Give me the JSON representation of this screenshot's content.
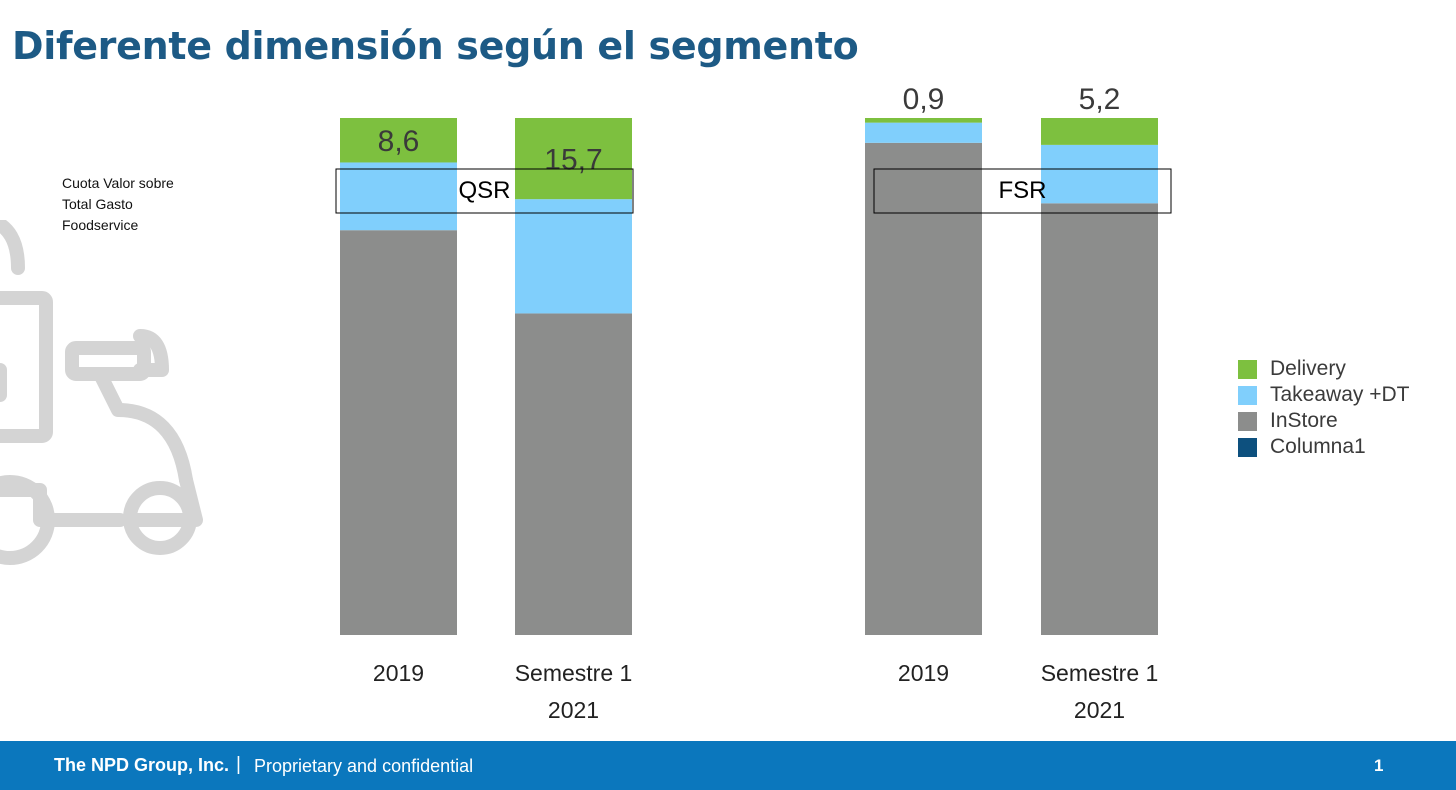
{
  "slide": {
    "title": "Diferente dimensión según el segmento",
    "side_note": [
      "Cuota Valor sobre",
      "Total Gasto",
      "Foodservice"
    ]
  },
  "footer": {
    "company": "The NPD Group, Inc.",
    "separator": "|",
    "confidential": "Proprietary and confidential",
    "page": "1"
  },
  "colors": {
    "title": "#1d5a85",
    "footer_bg": "#0b77bd"
  },
  "icons": {
    "background": "delivery-scooter-icon"
  },
  "chart_data": {
    "type": "bar",
    "stacked": true,
    "unit": "% value share",
    "ylim": [
      0,
      100
    ],
    "grid": false,
    "legend_position": "right",
    "categories": [
      "2019",
      "Semestre 1 2021"
    ],
    "category_lines": [
      [
        "2019"
      ],
      [
        "Semestre 1",
        "2021"
      ]
    ],
    "series": [
      {
        "name": "Delivery",
        "color": "#7dc03f"
      },
      {
        "name": "Takeaway +DT",
        "color": "#80cffc"
      },
      {
        "name": "InStore",
        "color": "#8c8d8c"
      },
      {
        "name": "Columna1",
        "color": "#0d507e"
      }
    ],
    "panels": [
      {
        "segment": "QSR",
        "bars": [
          {
            "category": "2019",
            "values": {
              "Delivery": 8.6,
              "Takeaway +DT": 13.1,
              "InStore": 78.3,
              "Columna1": 0
            },
            "label": "8,6"
          },
          {
            "category": "Semestre 1 2021",
            "values": {
              "Delivery": 15.7,
              "Takeaway +DT": 22.1,
              "InStore": 62.2,
              "Columna1": 0
            },
            "label": "15,7"
          }
        ]
      },
      {
        "segment": "FSR",
        "bars": [
          {
            "category": "2019",
            "values": {
              "Delivery": 0.9,
              "Takeaway +DT": 3.9,
              "InStore": 95.2,
              "Columna1": 0
            },
            "label": "0,9"
          },
          {
            "category": "Semestre 1 2021",
            "values": {
              "Delivery": 5.2,
              "Takeaway +DT": 11.3,
              "InStore": 83.5,
              "Columna1": 0
            },
            "label": "5,2"
          }
        ]
      }
    ]
  }
}
